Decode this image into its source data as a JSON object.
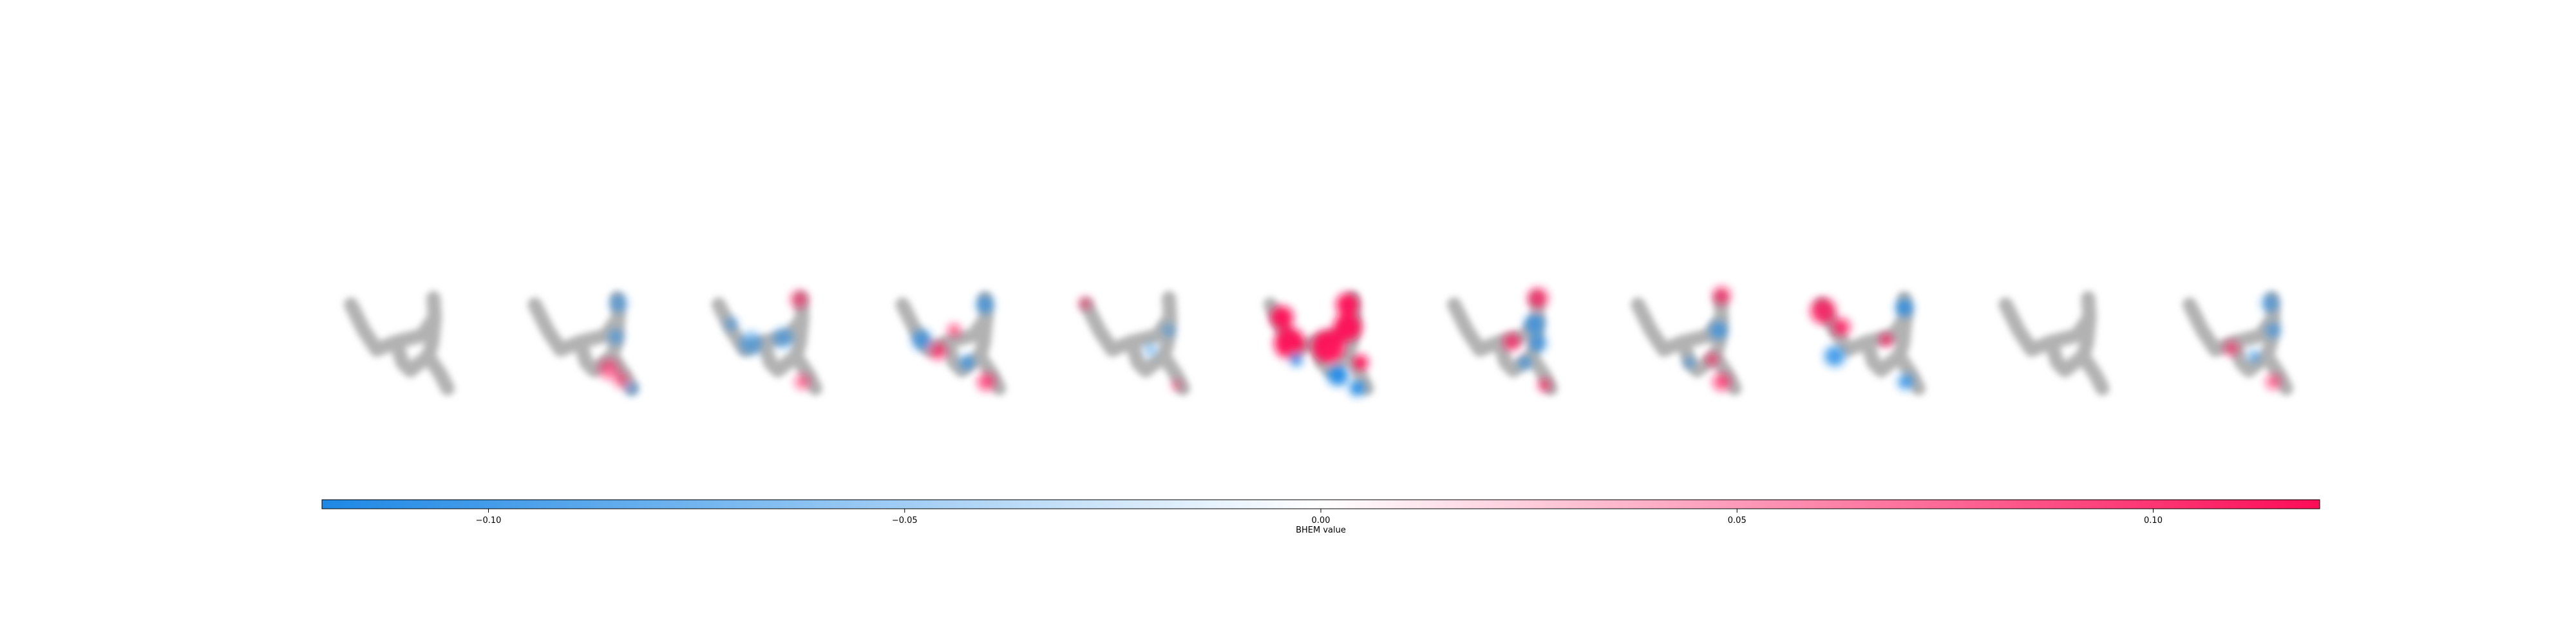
{
  "chart_data": {
    "type": "heatmap",
    "title": "",
    "description_series": "BHEM explanation maps overlaid on a grey handwritten digit for 11 classes",
    "panels": [
      {
        "name": "panel-0",
        "intensity": 0.0,
        "pattern": "none"
      },
      {
        "name": "panel-1",
        "intensity": 0.35,
        "pattern": "blue-top-right, red-bottom"
      },
      {
        "name": "panel-2",
        "intensity": 0.35,
        "pattern": "blue-center, red-top"
      },
      {
        "name": "panel-3",
        "intensity": 0.55,
        "pattern": "blue-left, red-bottom"
      },
      {
        "name": "panel-4",
        "intensity": 0.25,
        "pattern": "faint red top, blue right"
      },
      {
        "name": "panel-5",
        "intensity": 1.0,
        "pattern": "strong red center, blue bottom"
      },
      {
        "name": "panel-6",
        "intensity": 0.6,
        "pattern": "red top-right, blue right"
      },
      {
        "name": "panel-7",
        "intensity": 0.55,
        "pattern": "red top-right, red bottom"
      },
      {
        "name": "panel-8",
        "intensity": 0.75,
        "pattern": "red left, blue left-bottom"
      },
      {
        "name": "panel-9",
        "intensity": 0.05,
        "pattern": "none"
      },
      {
        "name": "panel-10",
        "intensity": 0.4,
        "pattern": "blue right, red center"
      }
    ],
    "colorbar": {
      "vmin": -0.12,
      "vmax": 0.12,
      "ticks": [
        -0.1,
        -0.05,
        0.0,
        0.05,
        0.1
      ],
      "tick_labels": [
        "−0.10",
        "−0.05",
        "0.00",
        "0.05",
        "0.10"
      ],
      "label": "BHEM value",
      "cmap_low": "#1e88e5",
      "cmap_mid": "#ffffff",
      "cmap_high": "#ff0d57"
    },
    "digit_color": "#b2b2b2"
  }
}
